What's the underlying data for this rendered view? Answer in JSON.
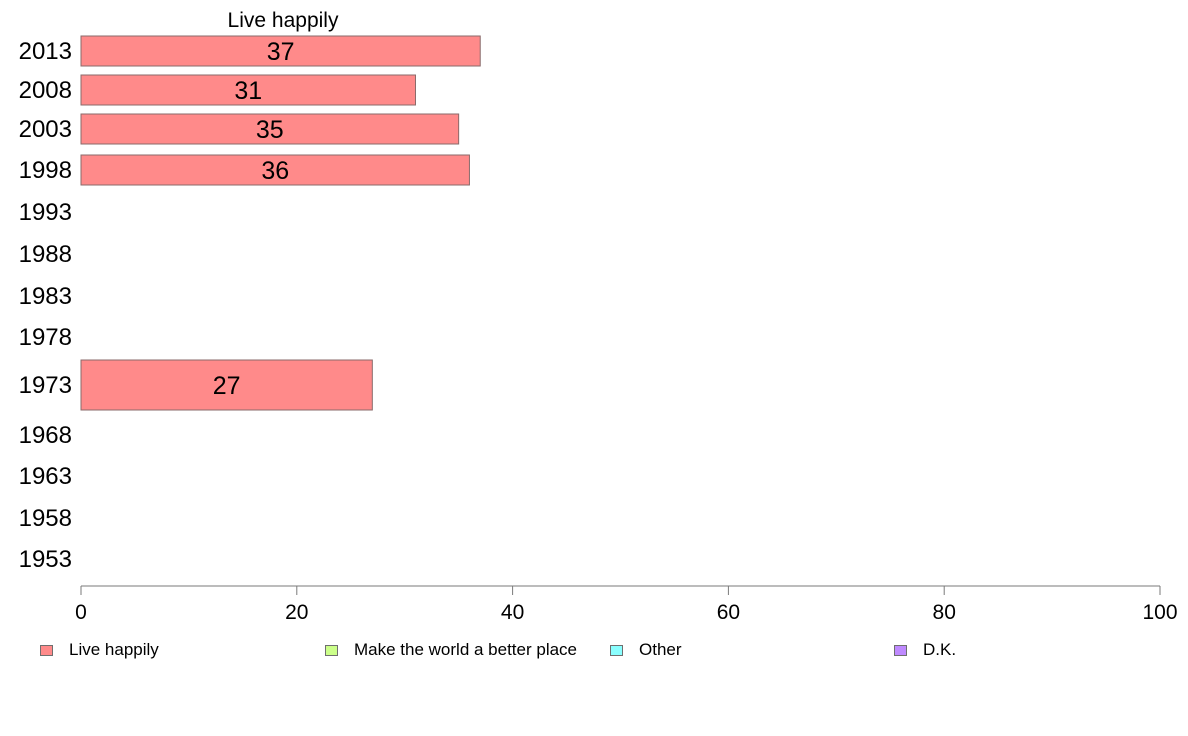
{
  "chart_data": {
    "type": "bar",
    "orientation": "horizontal",
    "title": "Live happily",
    "categories": [
      "2013",
      "2008",
      "2003",
      "1998",
      "1993",
      "1988",
      "1983",
      "1978",
      "1973",
      "1968",
      "1963",
      "1958",
      "1953"
    ],
    "series": [
      {
        "name": "Live happily",
        "color": "#ff8a8a",
        "values": [
          37,
          31,
          35,
          36,
          null,
          null,
          null,
          null,
          27,
          null,
          null,
          null,
          null
        ]
      }
    ],
    "xlim": [
      0,
      100
    ],
    "xticks": [
      "0",
      "20",
      "40",
      "60",
      "80",
      "100"
    ],
    "grid": false,
    "legend_position": "bottom"
  },
  "legend": {
    "items": [
      {
        "label": "Live happily",
        "color": "#ff8a8a"
      },
      {
        "label": "Make the world a better place",
        "color": "#ccff8a"
      },
      {
        "label": "Other",
        "color": "#8affff"
      },
      {
        "label": "D.K.",
        "color": "#bf8aff"
      }
    ]
  }
}
